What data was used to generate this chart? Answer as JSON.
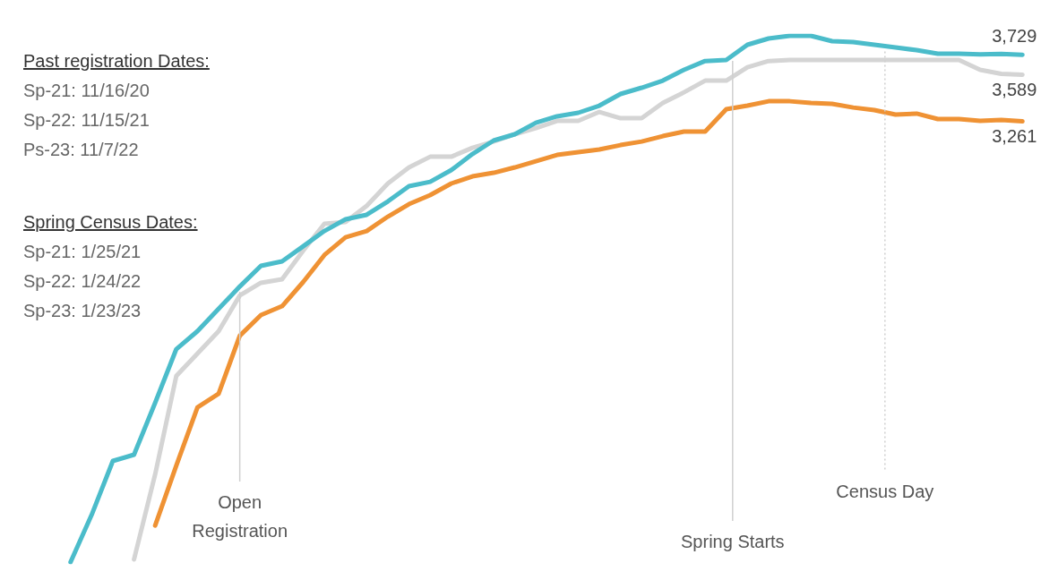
{
  "chart_data": {
    "type": "line",
    "categories": [
      null,
      null,
      null,
      null,
      null,
      null,
      null,
      null,
      null,
      null,
      null,
      null,
      null,
      null,
      null,
      null,
      null,
      null,
      null,
      null,
      null,
      null,
      null,
      null,
      null,
      null,
      null,
      null,
      null,
      null,
      null,
      null,
      null,
      null,
      null,
      null,
      null,
      null,
      null,
      null,
      null,
      null,
      null,
      null,
      null,
      null
    ],
    "series": [
      {
        "color": "#4bbcca",
        "values": [
          163,
          496,
          874,
          918,
          1283,
          1660,
          1786,
          1943,
          2100,
          2245,
          2277,
          2383,
          2490,
          2572,
          2604,
          2698,
          2805,
          2836,
          2918,
          3031,
          3126,
          3170,
          3251,
          3296,
          3321,
          3371,
          3453,
          3497,
          3547,
          3623,
          3685,
          3692,
          3799,
          3843,
          3862,
          3862,
          3824,
          3818,
          3799,
          3780,
          3761,
          3736,
          3736,
          3732,
          3735,
          3729
        ],
        "value_labels": [
          null,
          null,
          null,
          null,
          null,
          null,
          null,
          null,
          null,
          null,
          null,
          null,
          null,
          null,
          null,
          null,
          null,
          null,
          null,
          null,
          null,
          null,
          null,
          null,
          null,
          null,
          null,
          null,
          null,
          null,
          null,
          null,
          null,
          null,
          null,
          null,
          null,
          null,
          null,
          null,
          null,
          null,
          null,
          null,
          null,
          "3,729"
        ]
      },
      {
        "color": "#d4d4d4",
        "values": [
          null,
          null,
          null,
          182,
          780,
          1471,
          1629,
          1786,
          2037,
          2126,
          2151,
          2352,
          2541,
          2553,
          2667,
          2824,
          2937,
          3012,
          3012,
          3075,
          3119,
          3170,
          3214,
          3264,
          3264,
          3327,
          3283,
          3283,
          3390,
          3465,
          3547,
          3547,
          3641,
          3685,
          3692,
          3692,
          3692,
          3692,
          3692,
          3692,
          3692,
          3692,
          3692,
          3623,
          3595,
          3589
        ],
        "value_labels": [
          null,
          null,
          null,
          null,
          null,
          null,
          null,
          null,
          null,
          null,
          null,
          null,
          null,
          null,
          null,
          null,
          null,
          null,
          null,
          null,
          null,
          null,
          null,
          null,
          null,
          null,
          null,
          null,
          null,
          null,
          null,
          null,
          null,
          null,
          null,
          null,
          null,
          null,
          null,
          null,
          null,
          null,
          null,
          null,
          null,
          "3,589"
        ]
      },
      {
        "color": "#ef9234",
        "values": [
          null,
          null,
          null,
          null,
          420,
          842,
          1251,
          1346,
          1754,
          1899,
          1962,
          2132,
          2321,
          2446,
          2490,
          2591,
          2679,
          2742,
          2824,
          2874,
          2899,
          2937,
          2981,
          3025,
          3044,
          3063,
          3094,
          3119,
          3157,
          3189,
          3189,
          3346,
          3371,
          3402,
          3402,
          3390,
          3384,
          3358,
          3340,
          3308,
          3315,
          3277,
          3277,
          3264,
          3270,
          3261
        ],
        "value_labels": [
          null,
          null,
          null,
          null,
          null,
          null,
          null,
          null,
          null,
          null,
          null,
          null,
          null,
          null,
          null,
          null,
          null,
          null,
          null,
          null,
          null,
          null,
          null,
          null,
          null,
          null,
          null,
          null,
          null,
          null,
          null,
          null,
          null,
          null,
          null,
          null,
          null,
          null,
          null,
          null,
          null,
          null,
          null,
          null,
          null,
          "3,261"
        ]
      }
    ],
    "legend": false,
    "tick_labels": false,
    "marker": "none",
    "line_style": "solid",
    "annotations": [
      "Past registration Dates:\nSp-21: 11/16/20\nSp-22: 11/15/21\nPs-23: 11/7/22",
      "Spring Census Dates:\nSp-21: 1/25/21\nSp-22: 1/24/22\nSp-23: 1/23/23",
      "Open Registration",
      "Spring Starts",
      "Census Day"
    ]
  }
}
